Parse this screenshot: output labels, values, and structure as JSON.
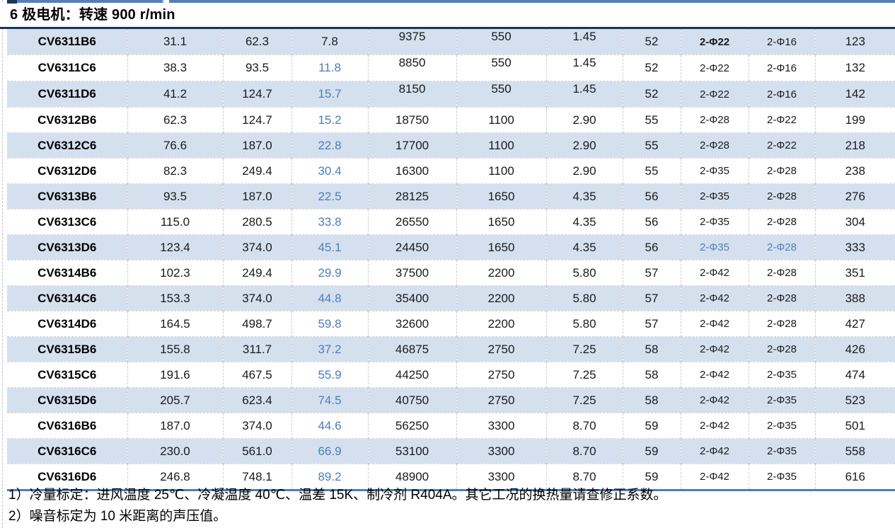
{
  "section": {
    "title": "6 极电机：转速 900 r/min"
  },
  "colors": {
    "band_row": "#d5e0ef",
    "accent_blue_text": "#4a7ebb",
    "title_rule": "#17375d",
    "top_rule": "#4f81bd"
  },
  "table": {
    "rows": [
      {
        "cells": [
          "CV6311B6",
          "31.1",
          "62.3",
          "7.8",
          "9375",
          "550",
          "1.45",
          "52",
          "2-Φ22",
          "2-Φ16",
          "123"
        ],
        "blue_cells": [],
        "bold_cells": [
          8
        ],
        "raised": true
      },
      {
        "cells": [
          "CV6311C6",
          "38.3",
          "93.5",
          "11.8",
          "8850",
          "550",
          "1.45",
          "52",
          "2-Φ22",
          "2-Φ16",
          "132"
        ],
        "blue_cells": [
          3
        ],
        "bold_cells": [],
        "raised": true
      },
      {
        "cells": [
          "CV6311D6",
          "41.2",
          "124.7",
          "15.7",
          "8150",
          "550",
          "1.45",
          "52",
          "2-Φ22",
          "2-Φ16",
          "142"
        ],
        "blue_cells": [
          3
        ],
        "bold_cells": [],
        "raised": true
      },
      {
        "cells": [
          "CV6312B6",
          "62.3",
          "124.7",
          "15.2",
          "18750",
          "1100",
          "2.90",
          "55",
          "2-Φ28",
          "2-Φ22",
          "199"
        ],
        "blue_cells": [
          3
        ],
        "bold_cells": []
      },
      {
        "cells": [
          "CV6312C6",
          "76.6",
          "187.0",
          "22.8",
          "17700",
          "1100",
          "2.90",
          "55",
          "2-Φ28",
          "2-Φ22",
          "218"
        ],
        "blue_cells": [
          3
        ],
        "bold_cells": []
      },
      {
        "cells": [
          "CV6312D6",
          "82.3",
          "249.4",
          "30.4",
          "16300",
          "1100",
          "2.90",
          "55",
          "2-Φ35",
          "2-Φ28",
          "238"
        ],
        "blue_cells": [
          3
        ],
        "bold_cells": []
      },
      {
        "cells": [
          "CV6313B6",
          "93.5",
          "187.0",
          "22.5",
          "28125",
          "1650",
          "4.35",
          "56",
          "2-Φ35",
          "2-Φ28",
          "276"
        ],
        "blue_cells": [
          3
        ],
        "bold_cells": []
      },
      {
        "cells": [
          "CV6313C6",
          "115.0",
          "280.5",
          "33.8",
          "26550",
          "1650",
          "4.35",
          "56",
          "2-Φ35",
          "2-Φ28",
          "304"
        ],
        "blue_cells": [
          3
        ],
        "bold_cells": []
      },
      {
        "cells": [
          "CV6313D6",
          "123.4",
          "374.0",
          "45.1",
          "24450",
          "1650",
          "4.35",
          "56",
          "2-Φ35",
          "2-Φ28",
          "333"
        ],
        "blue_cells": [
          3,
          8,
          9
        ],
        "bold_cells": []
      },
      {
        "cells": [
          "CV6314B6",
          "102.3",
          "249.4",
          "29.9",
          "37500",
          "2200",
          "5.80",
          "57",
          "2-Φ42",
          "2-Φ28",
          "351"
        ],
        "blue_cells": [
          3
        ],
        "bold_cells": []
      },
      {
        "cells": [
          "CV6314C6",
          "153.3",
          "374.0",
          "44.8",
          "35400",
          "2200",
          "5.80",
          "57",
          "2-Φ42",
          "2-Φ28",
          "388"
        ],
        "blue_cells": [
          3
        ],
        "bold_cells": []
      },
      {
        "cells": [
          "CV6314D6",
          "164.5",
          "498.7",
          "59.8",
          "32600",
          "2200",
          "5.80",
          "57",
          "2-Φ42",
          "2-Φ28",
          "427"
        ],
        "blue_cells": [
          3
        ],
        "bold_cells": []
      },
      {
        "cells": [
          "CV6315B6",
          "155.8",
          "311.7",
          "37.2",
          "46875",
          "2750",
          "7.25",
          "58",
          "2-Φ42",
          "2-Φ28",
          "426"
        ],
        "blue_cells": [
          3
        ],
        "bold_cells": []
      },
      {
        "cells": [
          "CV6315C6",
          "191.6",
          "467.5",
          "55.9",
          "44250",
          "2750",
          "7.25",
          "58",
          "2-Φ42",
          "2-Φ35",
          "474"
        ],
        "blue_cells": [
          3
        ],
        "bold_cells": []
      },
      {
        "cells": [
          "CV6315D6",
          "205.7",
          "623.4",
          "74.5",
          "40750",
          "2750",
          "7.25",
          "58",
          "2-Φ42",
          "2-Φ35",
          "523"
        ],
        "blue_cells": [
          3
        ],
        "bold_cells": []
      },
      {
        "cells": [
          "CV6316B6",
          "187.0",
          "374.0",
          "44.6",
          "56250",
          "3300",
          "8.70",
          "59",
          "2-Φ42",
          "2-Φ35",
          "501"
        ],
        "blue_cells": [
          3
        ],
        "bold_cells": []
      },
      {
        "cells": [
          "CV6316C6",
          "230.0",
          "561.0",
          "66.9",
          "53100",
          "3300",
          "8.70",
          "59",
          "2-Φ42",
          "2-Φ35",
          "558"
        ],
        "blue_cells": [
          3
        ],
        "bold_cells": []
      },
      {
        "cells": [
          "CV6316D6",
          "246.8",
          "748.1",
          "89.2",
          "48900",
          "3300",
          "8.70",
          "59",
          "2-Φ42",
          "2-Φ35",
          "616"
        ],
        "blue_cells": [
          3
        ],
        "bold_cells": []
      }
    ]
  },
  "notes": [
    "1）冷量标定：进风温度 25℃、冷凝温度 40℃、温差 15K、制冷剂 R404A。其它工况的换热量请查修正系数。",
    "2）噪音标定为 10 米距离的声压值。"
  ]
}
